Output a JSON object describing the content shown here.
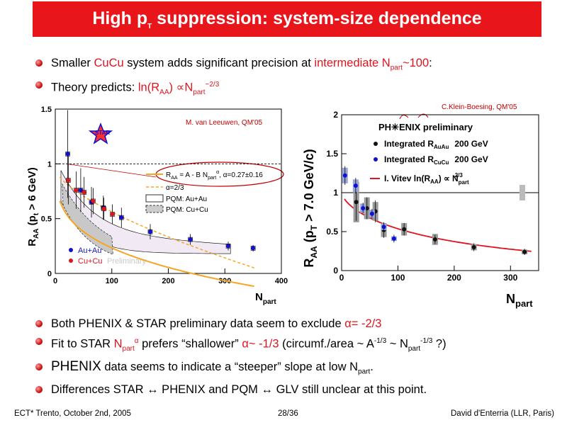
{
  "slide": {
    "title_main": "High p",
    "title_sub": "T",
    "title_rest": " suppression: system-size dependence",
    "bullets": [
      {
        "p1": "Smaller ",
        "r1": "CuCu",
        "p2": " system adds significant precision at ",
        "r2": "intermediate N",
        "r2sub": "part",
        "r3": "~100",
        "p3": ":"
      },
      {
        "p1": "Theory predicts: ",
        "r1": "ln(R",
        "r1sub": "AA",
        "r2": ") ∝N",
        "r2sub": "part",
        "r2sup": "−2/3"
      }
    ],
    "bottom_bullets": {
      "b1_a": "Both PHENIX & STAR preliminary data seem to exclude ",
      "b1_r": "α= -2/3",
      "b2_a": "Fit to STAR ",
      "b2_r": "N",
      "b2_rsub": "part",
      "b2_rsup": "α",
      "b2_b": " prefers “shallower” ",
      "b2_r2": "α~ -1/3",
      "b2_c": " (circumf./area ~ A",
      "b2_csup": "-1/3",
      "b2_d": " ~ N",
      "b2_dsub": "part",
      "b2_dsup": "-1/3",
      "b2_e": " ?)",
      "b3_a": "PHENIX",
      "b3_b": " data seems to indicate a “steeper” slope at low N",
      "b3_sub": "part",
      "b3_c": ".",
      "b4": "Differences STAR ↔ PHENIX and PQM ↔ GLV still unclear at this point."
    },
    "footer_left": "ECT* Trento, October 2nd, 2005",
    "footer_center": "28/36",
    "footer_right": "David d'Enterria (LLR, Paris)"
  },
  "colors": {
    "title_bg": "#e8151b",
    "highlight": "#e0141e",
    "auau": "#1010d0",
    "cucu": "#e0141e",
    "fit": "#f5a623"
  },
  "chart_data": [
    {
      "type": "scatter",
      "name": "star",
      "credit": "M. van Leeuwen, QM'05",
      "logo": "STAR",
      "ylabel_main": "R",
      "ylabel_sub": "AA",
      "ylabel_rest": " (p",
      "ylabel_sub2": "t",
      "ylabel_end": " > 6 GeV)",
      "xlabel_main": "N",
      "xlabel_sub": "part",
      "xlim": [
        0,
        400
      ],
      "ylim": [
        0,
        1.5
      ],
      "xticks": [
        0,
        100,
        200,
        300,
        400
      ],
      "yticks": [
        0,
        0.5,
        1,
        1.5
      ],
      "ytick_labels": [
        "0",
        "0.5",
        "1",
        "1.5"
      ],
      "legend": {
        "fit_a": "R",
        "fit_asub": "AA",
        "fit_b": " = A - B N",
        "fit_bsub": "part",
        "fit_bsup": "α",
        "fit_c": ", α=0.27±0.16",
        "alt": "α=2/3",
        "pqm_auau": "PQM: Au+Au",
        "pqm_cucu": "PQM: Cu+Cu"
      },
      "series_labels": {
        "auau": "Au+Au",
        "cucu": "Cu+Cu",
        "prelim": "Preliminary"
      },
      "series": [
        {
          "key": "auau",
          "color": "#1010d0",
          "x": [
            22,
            45,
            64,
            85,
            117,
            168,
            239,
            306,
            350
          ],
          "y": [
            1.09,
            0.76,
            0.65,
            0.6,
            0.51,
            0.38,
            0.31,
            0.25,
            0.23
          ],
          "err": [
            0.4,
            0.2,
            0.14,
            0.11,
            0.09,
            0.07,
            0.05,
            0.04,
            0.03
          ]
        },
        {
          "key": "cucu",
          "color": "#e0141e",
          "x": [
            23,
            37,
            51,
            67,
            86,
            101
          ],
          "y": [
            0.85,
            0.76,
            0.74,
            0.66,
            0.59,
            0.54
          ],
          "err": [
            0.22,
            0.17,
            0.14,
            0.12,
            0.1,
            0.09
          ]
        }
      ]
    },
    {
      "type": "scatter",
      "name": "phenix",
      "credit": "C.Klein-Boesing, QM'05",
      "logo": "PH✳ENIX preliminary",
      "ylabel_main": "R",
      "ylabel_sub": "AA",
      "ylabel_rest": " (p",
      "ylabel_sub2": "T",
      "ylabel_end": " > 7.0 GeV/c)",
      "xlabel_main": "N",
      "xlabel_sub": "part",
      "xlim": [
        0,
        350
      ],
      "ylim": [
        0,
        2
      ],
      "xticks": [
        0,
        100,
        200,
        300
      ],
      "yticks": [
        0,
        0.5,
        1,
        1.5,
        2
      ],
      "ytick_labels": [
        "0",
        "0.5",
        "1",
        "1.5",
        "2"
      ],
      "legend": {
        "auau_a": "Integrated R",
        "auau_sub": "AuAu",
        "auau_b": "200 GeV",
        "cucu_a": "Integrated R",
        "cucu_sub": "CuCu",
        "cucu_b": "200 GeV",
        "vitev_a": "I. Vitev  ln(R",
        "vitev_sub": "AA",
        "vitev_b": ") ∝ N",
        "vitev_sub2": "part",
        "vitev_sup": "2/3"
      },
      "series": [
        {
          "key": "auau",
          "color": "#111111",
          "x": [
            26,
            45,
            60,
            75,
            111,
            166,
            235,
            325
          ],
          "y": [
            0.88,
            0.8,
            0.76,
            0.52,
            0.53,
            0.4,
            0.3,
            0.24
          ],
          "err": [
            0.24,
            0.14,
            0.14,
            0.1,
            0.08,
            0.06,
            0.05,
            0.04
          ],
          "sys": [
            0.26,
            0.14,
            0.12,
            0.09,
            0.08,
            0.07,
            0.04,
            0.03
          ]
        },
        {
          "key": "cucu",
          "color": "#1010d0",
          "x": [
            6,
            25,
            38,
            54,
            75,
            93
          ],
          "y": [
            1.22,
            1.09,
            0.8,
            0.73,
            0.56,
            0.41
          ],
          "err": [
            0.12,
            0.1,
            0.07,
            0.06,
            0.05,
            0.05
          ],
          "sys": [
            0.1,
            0.08,
            0.06,
            0.05,
            0.04,
            0.03
          ]
        }
      ]
    }
  ]
}
